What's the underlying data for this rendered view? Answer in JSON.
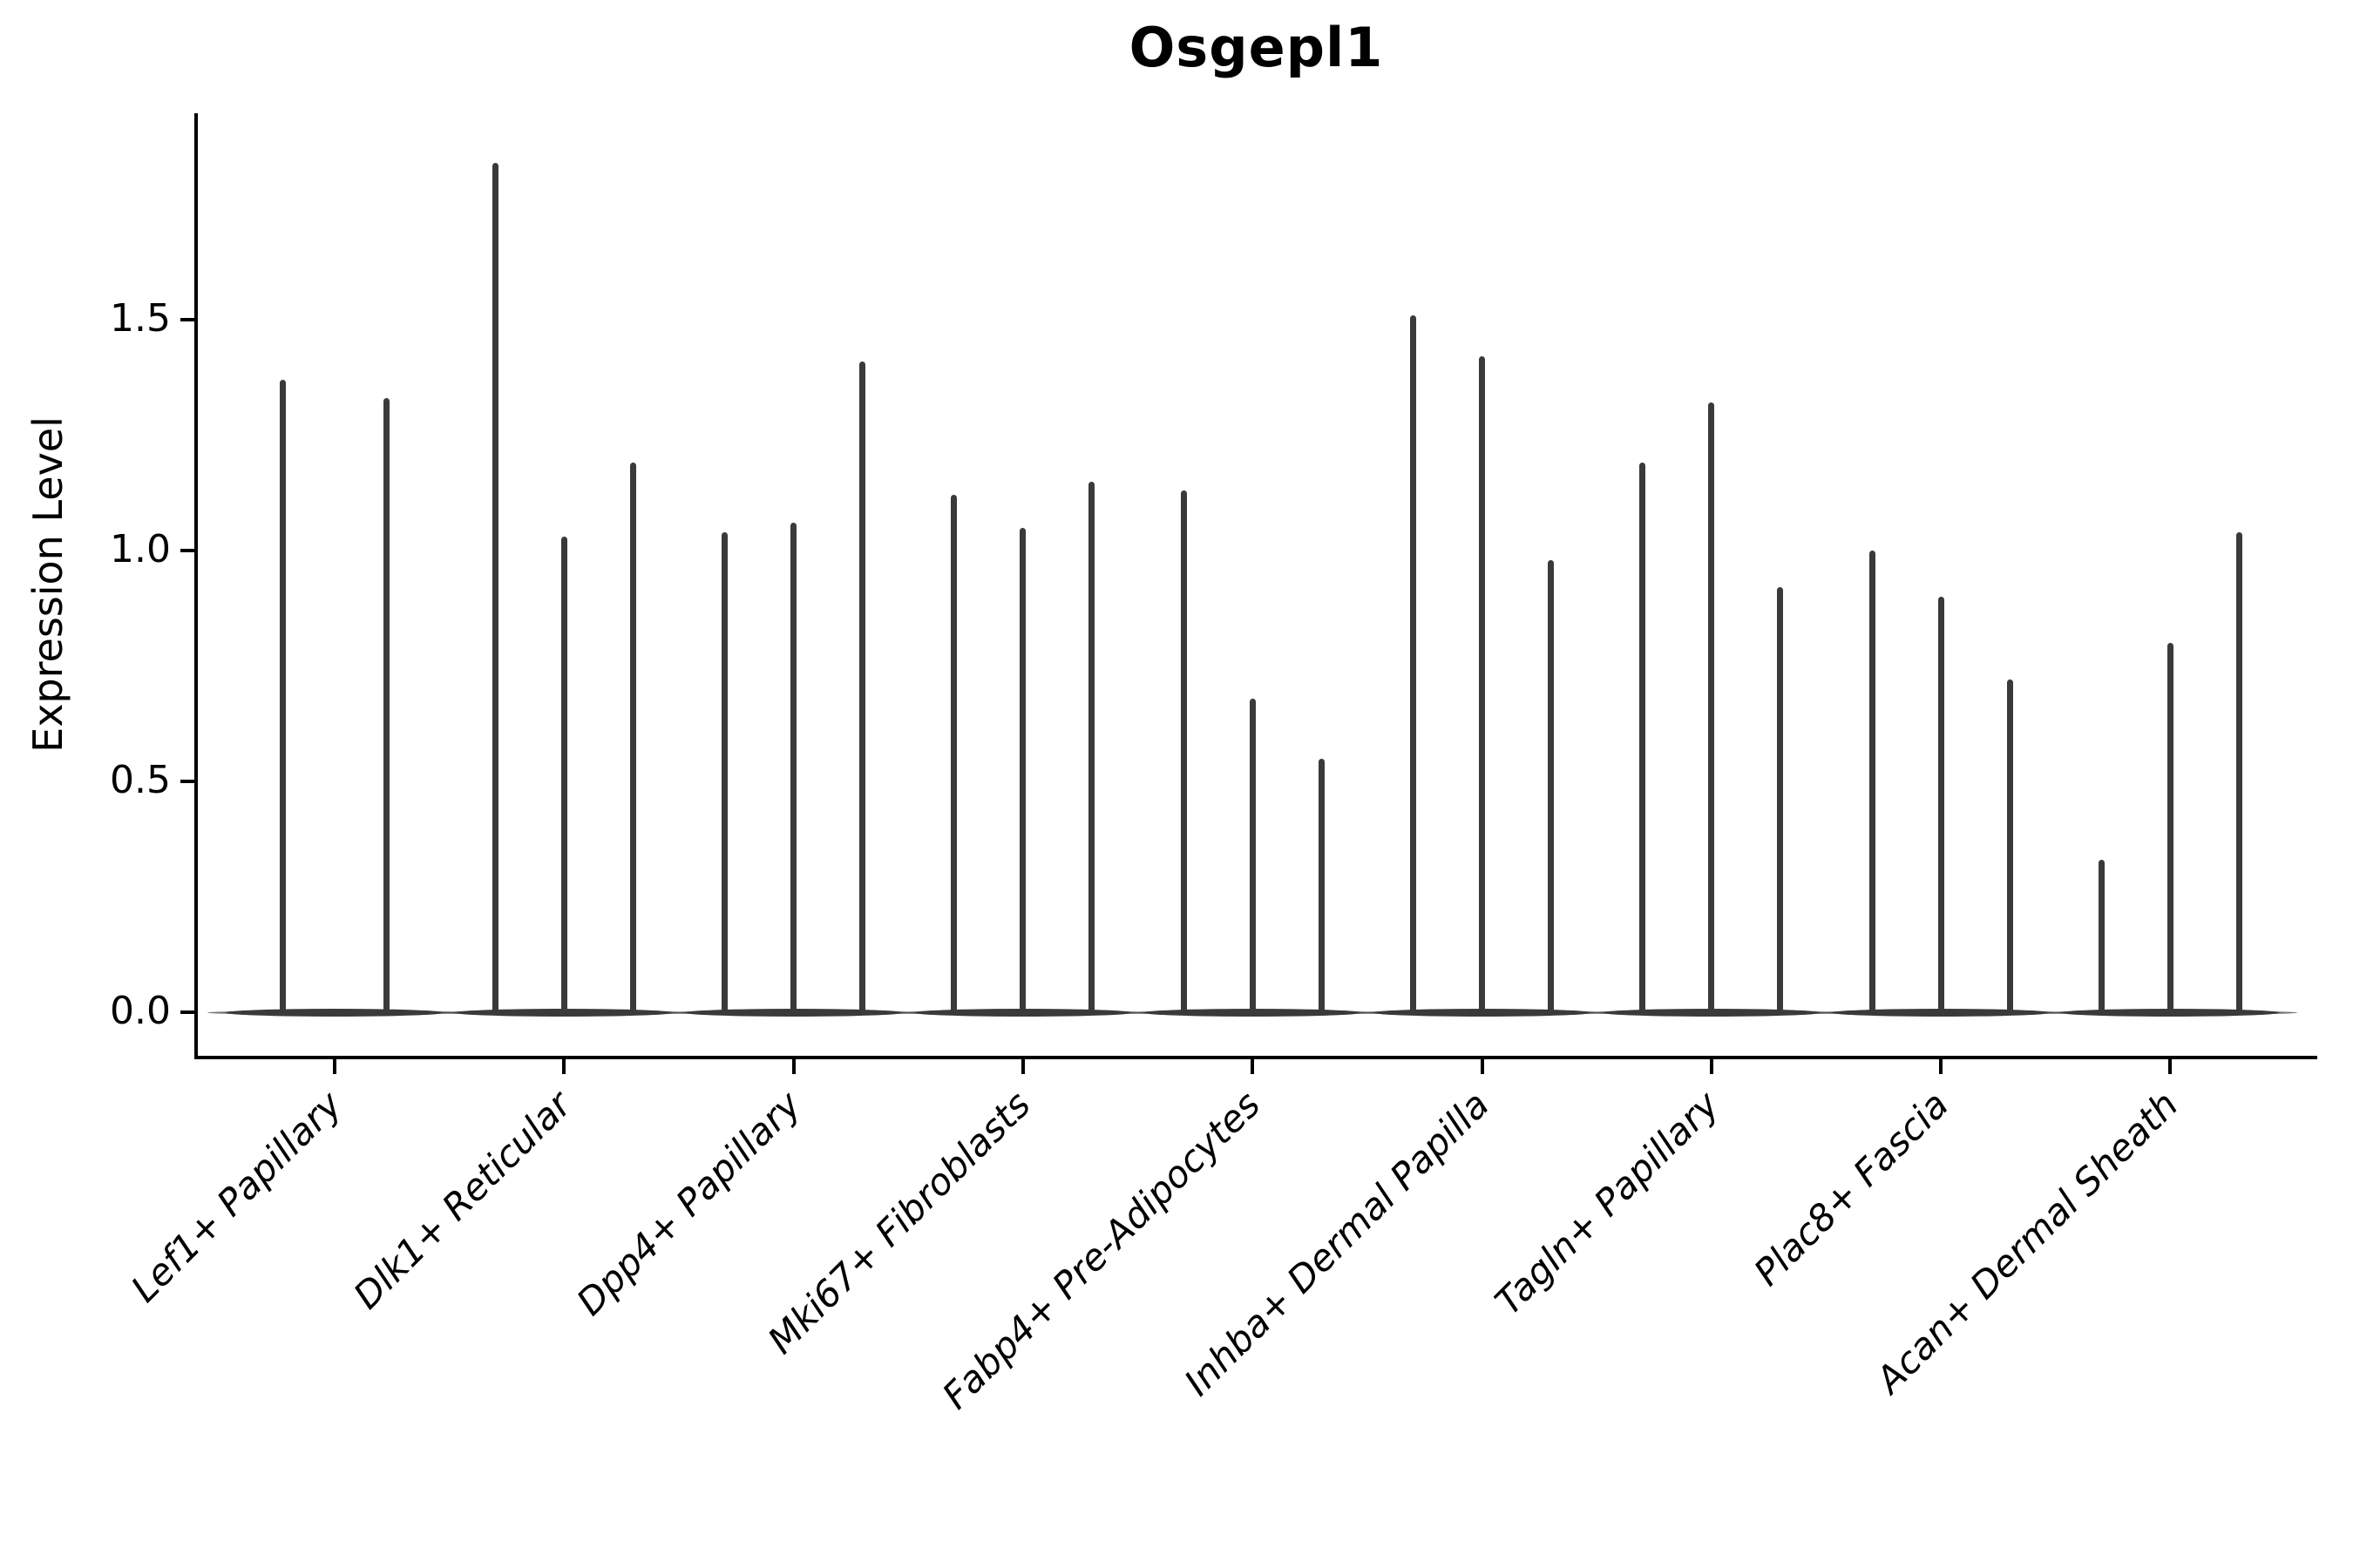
{
  "title": "Osgepl1",
  "axes": {
    "ylabel": "Expression Level",
    "ytick_labels": [
      "0.0",
      "0.5",
      "1.0",
      "1.5"
    ]
  },
  "colors": {
    "violin": "#3a3a3a",
    "axis": "#000000",
    "background": "#ffffff"
  },
  "chart_data": {
    "type": "violin",
    "title": "Osgepl1",
    "xlabel": "",
    "ylabel": "Expression Level",
    "ylim": [
      0,
      1.95
    ],
    "yticks": [
      0.0,
      0.5,
      1.0,
      1.5
    ],
    "grid": false,
    "legend": "none",
    "orientation": "vertical",
    "description": "Violin plot of Osgepl1 expression; most cells express 0 so each violin collapses to a wide flat base at 0 with a thin spike up to its maximum expression value.",
    "categories": [
      "Lef1+ Papillary",
      "Dlk1+ Reticular",
      "Dpp4+ Papillary",
      "Mki67+ Fibroblasts",
      "Fabp4+ Pre-Adipocytes",
      "Inhba+ Dermal Papilla",
      "Tagln+ Papillary",
      "Plac8+ Fascia",
      "Acan+ Dermal Sheath"
    ],
    "groups": [
      {
        "label": "Lef1+ Papillary",
        "violins": [
          {
            "offset": -0.225,
            "max": 1.37
          },
          {
            "offset": 0.225,
            "max": 1.33
          }
        ]
      },
      {
        "label": "Dlk1+ Reticular",
        "violins": [
          {
            "offset": -0.3,
            "max": 1.84
          },
          {
            "offset": 0,
            "max": 1.03
          },
          {
            "offset": 0.3,
            "max": 1.19
          }
        ]
      },
      {
        "label": "Dpp4+ Papillary",
        "violins": [
          {
            "offset": -0.3,
            "max": 1.04
          },
          {
            "offset": 0,
            "max": 1.06
          },
          {
            "offset": 0.3,
            "max": 1.41
          }
        ]
      },
      {
        "label": "Mki67+ Fibroblasts",
        "violins": [
          {
            "offset": -0.3,
            "max": 1.12
          },
          {
            "offset": 0,
            "max": 1.05
          },
          {
            "offset": 0.3,
            "max": 1.15
          }
        ]
      },
      {
        "label": "Fabp4+ Pre-Adipocytes",
        "violins": [
          {
            "offset": -0.3,
            "max": 1.13
          },
          {
            "offset": 0,
            "max": 0.68
          },
          {
            "offset": 0.3,
            "max": 0.55
          }
        ]
      },
      {
        "label": "Inhba+ Dermal Papilla",
        "violins": [
          {
            "offset": -0.3,
            "max": 1.51
          },
          {
            "offset": 0,
            "max": 1.42
          },
          {
            "offset": 0.3,
            "max": 0.98
          }
        ]
      },
      {
        "label": "Tagln+ Papillary",
        "violins": [
          {
            "offset": -0.3,
            "max": 1.19
          },
          {
            "offset": 0,
            "max": 1.32
          },
          {
            "offset": 0.3,
            "max": 0.92
          }
        ]
      },
      {
        "label": "Plac8+ Fascia",
        "violins": [
          {
            "offset": -0.3,
            "max": 1.0
          },
          {
            "offset": 0,
            "max": 0.9
          },
          {
            "offset": 0.3,
            "max": 0.72
          }
        ]
      },
      {
        "label": "Acan+ Dermal Sheath",
        "violins": [
          {
            "offset": -0.3,
            "max": 0.33
          },
          {
            "offset": 0,
            "max": 0.8
          },
          {
            "offset": 0.3,
            "max": 1.04
          }
        ]
      }
    ]
  }
}
